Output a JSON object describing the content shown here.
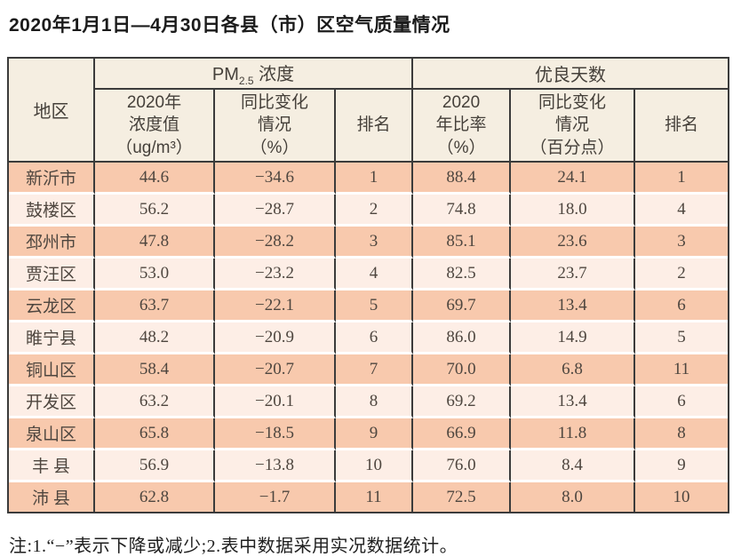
{
  "title": "2020年1月1日—4月30日各县（市）区空气质量情况",
  "table": {
    "header": {
      "region": "地区",
      "pm_group_prefix": "PM",
      "pm_group_sub": "2.5",
      "pm_group_suffix": " 浓度",
      "good_days_group": "优良天数",
      "pm_value": "2020年\n浓度值\n（ug/m³）",
      "pm_change": "同比变化\n情况\n（%）",
      "pm_rank": "排名",
      "rate_value": "2020\n年比率\n（%）",
      "rate_change": "同比变化\n情况\n（百分点）",
      "rate_rank": "排名"
    },
    "cell_names": [
      "region-cell",
      "pm-value-cell",
      "pm-change-cell",
      "pm-rank-cell",
      "good-days-rate-cell",
      "good-days-change-cell",
      "good-days-rank-cell"
    ],
    "rows": [
      [
        "新沂市",
        "44.6",
        "−34.6",
        "1",
        "88.4",
        "24.1",
        "1"
      ],
      [
        "鼓楼区",
        "56.2",
        "−28.7",
        "2",
        "74.8",
        "18.0",
        "4"
      ],
      [
        "邳州市",
        "47.8",
        "−28.2",
        "3",
        "85.1",
        "23.6",
        "3"
      ],
      [
        "贾汪区",
        "53.0",
        "−23.2",
        "4",
        "82.5",
        "23.7",
        "2"
      ],
      [
        "云龙区",
        "63.7",
        "−22.1",
        "5",
        "69.7",
        "13.4",
        "6"
      ],
      [
        "睢宁县",
        "48.2",
        "−20.9",
        "6",
        "86.0",
        "14.9",
        "5"
      ],
      [
        "铜山区",
        "58.4",
        "−20.7",
        "7",
        "70.0",
        "6.8",
        "11"
      ],
      [
        "开发区",
        "63.2",
        "−20.1",
        "8",
        "69.2",
        "13.4",
        "6"
      ],
      [
        "泉山区",
        "65.8",
        "−18.5",
        "9",
        "66.9",
        "11.8",
        "8"
      ],
      [
        "丰 县",
        "56.9",
        "−13.8",
        "10",
        "76.0",
        "8.4",
        "9"
      ],
      [
        "沛 县",
        "62.8",
        "−1.7",
        "11",
        "72.5",
        "8.0",
        "10"
      ]
    ]
  },
  "note": "注:1.“−”表示下降或减少;2.表中数据采用实况数据统计。",
  "colors": {
    "row_dark": "#f8c9ad",
    "row_light": "#fdeee6",
    "header_bg": "#f5eee1",
    "border": "#3b3b3b"
  }
}
